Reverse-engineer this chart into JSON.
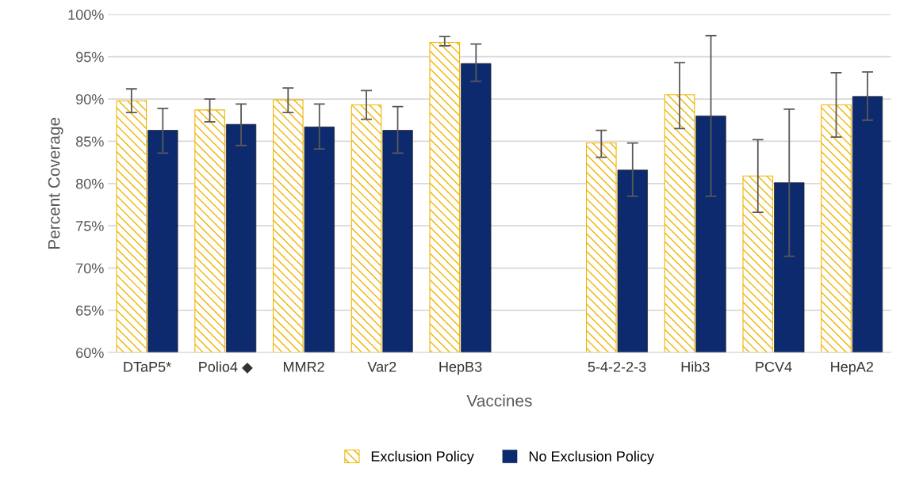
{
  "chart_data": {
    "type": "bar",
    "xlabel": "Vaccines",
    "ylabel": "Percent Coverage",
    "categories": [
      "DTaP5*",
      "Polio4 ◆",
      "MMR2",
      "Var2",
      "HepB3",
      null,
      "5-4-2-2-3",
      "Hib3",
      "PCV4",
      "HepA2"
    ],
    "series": [
      {
        "name": "Exclusion Policy",
        "color": "#f0b400",
        "values": [
          89.8,
          88.7,
          89.9,
          89.3,
          96.7,
          null,
          84.8,
          90.5,
          80.9,
          89.3
        ],
        "errors": [
          [
            88.4,
            91.2
          ],
          [
            87.3,
            90.0
          ],
          [
            88.4,
            91.3
          ],
          [
            87.6,
            91.0
          ],
          [
            96.3,
            97.4
          ],
          null,
          [
            83.1,
            86.3
          ],
          [
            86.5,
            94.3
          ],
          [
            76.6,
            85.2
          ],
          [
            85.5,
            93.1
          ]
        ]
      },
      {
        "name": "No Exclusion Policy",
        "color": "#0d2a6e",
        "values": [
          86.3,
          87.0,
          86.7,
          86.3,
          94.2,
          null,
          81.6,
          88.0,
          80.1,
          90.3
        ],
        "errors": [
          [
            83.6,
            88.9
          ],
          [
            84.5,
            89.4
          ],
          [
            84.1,
            89.4
          ],
          [
            83.6,
            89.1
          ],
          [
            92.1,
            96.5
          ],
          null,
          [
            78.5,
            84.8
          ],
          [
            78.5,
            97.5
          ],
          [
            71.4,
            88.8
          ],
          [
            87.5,
            93.2
          ]
        ]
      }
    ],
    "ylim": [
      60,
      100
    ],
    "yticks": [
      {
        "value": 60,
        "label": "60%"
      },
      {
        "value": 65,
        "label": "65%"
      },
      {
        "value": 70,
        "label": "70%"
      },
      {
        "value": 75,
        "label": "75%"
      },
      {
        "value": 80,
        "label": "80%"
      },
      {
        "value": 85,
        "label": "85%"
      },
      {
        "value": 90,
        "label": "90%"
      },
      {
        "value": 95,
        "label": "95%"
      },
      {
        "value": 100,
        "label": "100%"
      }
    ],
    "grid": "y",
    "legend": "bottom"
  }
}
